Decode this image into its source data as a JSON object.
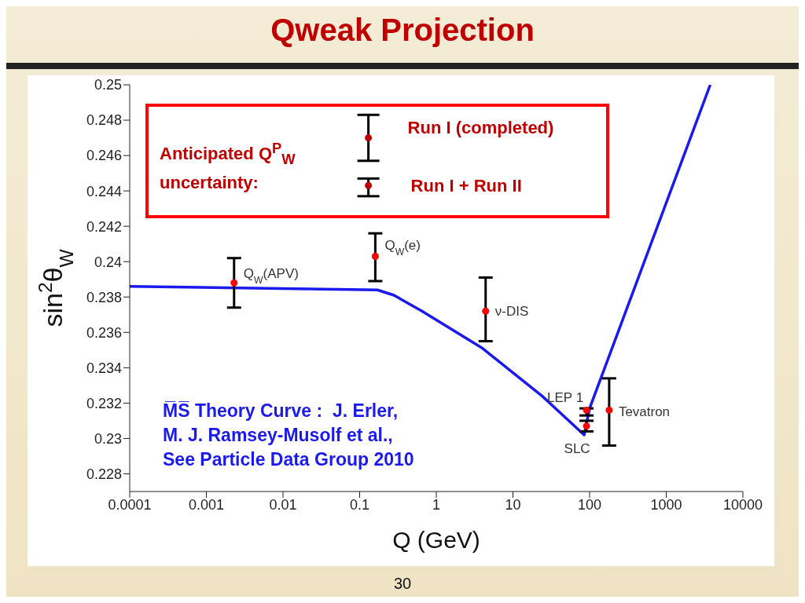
{
  "chart_data": {
    "type": "scatter",
    "title": "Qweak Projection",
    "xlabel": "Q (GeV)",
    "ylabel": "sin$^{2}$θ$_{W}$",
    "annotations": [
      "Anticipated Q$^{P}$$_{W}$ uncertainty:",
      "30"
    ],
    "log": "x",
    "xlim": [
      0.0001,
      10000
    ],
    "xticks": [
      0.0001,
      0.001,
      0.01,
      0.1,
      1,
      10,
      100,
      1000,
      10000
    ],
    "ylim": [
      0.227,
      0.25
    ],
    "yticks": [
      0.228,
      0.23,
      0.232,
      0.234,
      0.236,
      0.238,
      0.24,
      0.242,
      0.244,
      0.246,
      0.248,
      0.25
    ],
    "series": [
      {
        "type": "line",
        "name": "M̅S̅ Theory Curve :  J. Erler,\nM. J. Ramsey-Musolf et al.,\nSee Particle Data Group 2010",
        "color": "#1a1aee",
        "marker": "none",
        "x": [
          0.0001,
          0.17,
          0.28,
          0.65,
          4,
          24,
          85,
          100,
          3750
        ],
        "values": [
          0.2386,
          0.2384,
          0.2381,
          0.2372,
          0.2351,
          0.2324,
          0.2302,
          0.2317,
          0.25
        ]
      },
      {
        "name": "Q$_{W}$(APV)",
        "color": "#ff0000",
        "marker": "circle",
        "x": [
          0.0023
        ],
        "values": [
          0.2388
        ],
        "errors": [
          [
            0.2374,
            0.2402
          ]
        ]
      },
      {
        "name": "Q$_{W}$(e)",
        "color": "#ff0000",
        "marker": "circle",
        "x": [
          0.16
        ],
        "values": [
          0.2403
        ],
        "errors": [
          [
            0.2389,
            0.2416
          ]
        ]
      },
      {
        "name": "ν-DIS",
        "color": "#ff0000",
        "marker": "circle",
        "x": [
          4.4
        ],
        "values": [
          0.2372
        ],
        "errors": [
          [
            0.2355,
            0.2391
          ]
        ]
      },
      {
        "name": "LEP 1",
        "color": "#ff0000",
        "marker": "circle",
        "x": [
          91.19
        ],
        "values": [
          0.2316
        ],
        "errors": [
          [
            0.2313,
            0.2317
          ]
        ]
      },
      {
        "name": "SLC",
        "color": "#ff0000",
        "marker": "circle",
        "x": [
          91.19
        ],
        "values": [
          0.2307
        ],
        "errors": [
          [
            0.2304,
            0.231
          ]
        ]
      },
      {
        "name": "Tevatron",
        "color": "#ff0000",
        "marker": "circle",
        "x": [
          180
        ],
        "values": [
          0.2316
        ],
        "errors": [
          [
            0.2296,
            0.2334
          ]
        ]
      },
      {
        "name": "Run I (completed)",
        "color": "#c00000",
        "marker": "circle",
        "x": [
          0.13
        ],
        "values": [
          0.247
        ],
        "errors": [
          [
            0.2457,
            0.2483
          ]
        ]
      },
      {
        "name": "Run I + Run II",
        "color": "#c00000",
        "marker": "circle",
        "x": [
          0.13
        ],
        "values": [
          0.2443
        ],
        "errors": [
          [
            0.2437,
            0.2447
          ]
        ]
      }
    ]
  }
}
